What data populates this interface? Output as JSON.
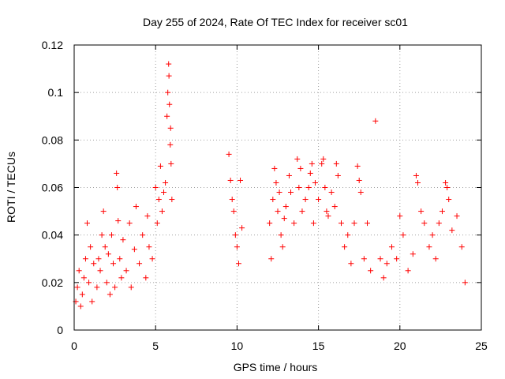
{
  "chart_data": {
    "type": "scatter",
    "title": "Day 255 of 2024, Rate Of TEC Index for receiver sc01",
    "xlabel": "GPS time / hours",
    "ylabel": "ROTI / TECUs",
    "xlim": [
      0,
      25
    ],
    "ylim": [
      0,
      0.12
    ],
    "xticks": [
      0,
      5,
      10,
      15,
      20,
      25
    ],
    "xtick_labels": [
      "0",
      "5",
      "10",
      "15",
      "20",
      "25"
    ],
    "yticks": [
      0,
      0.02,
      0.04,
      0.06,
      0.08,
      0.1,
      0.12
    ],
    "ytick_labels": [
      "0",
      "0.02",
      "0.04",
      "0.06",
      "0.08",
      "0.1",
      "0.12"
    ],
    "grid": true,
    "marker": "+",
    "color": "#ff0000",
    "series": [
      {
        "points": [
          [
            0.1,
            0.012
          ],
          [
            0.2,
            0.018
          ],
          [
            0.3,
            0.025
          ],
          [
            0.4,
            0.01
          ],
          [
            0.5,
            0.015
          ],
          [
            0.6,
            0.022
          ],
          [
            0.7,
            0.03
          ],
          [
            0.8,
            0.045
          ],
          [
            0.9,
            0.02
          ],
          [
            1.0,
            0.035
          ],
          [
            1.1,
            0.012
          ],
          [
            1.2,
            0.028
          ],
          [
            1.4,
            0.018
          ],
          [
            1.5,
            0.03
          ],
          [
            1.6,
            0.025
          ],
          [
            1.7,
            0.04
          ],
          [
            1.8,
            0.05
          ],
          [
            1.9,
            0.035
          ],
          [
            2.0,
            0.02
          ],
          [
            2.1,
            0.032
          ],
          [
            2.2,
            0.015
          ],
          [
            2.3,
            0.04
          ],
          [
            2.4,
            0.028
          ],
          [
            2.5,
            0.018
          ],
          [
            2.6,
            0.066
          ],
          [
            2.65,
            0.06
          ],
          [
            2.7,
            0.046
          ],
          [
            2.8,
            0.03
          ],
          [
            2.9,
            0.022
          ],
          [
            3.0,
            0.038
          ],
          [
            3.2,
            0.025
          ],
          [
            3.4,
            0.045
          ],
          [
            3.5,
            0.018
          ],
          [
            3.7,
            0.034
          ],
          [
            3.8,
            0.052
          ],
          [
            4.0,
            0.028
          ],
          [
            4.2,
            0.04
          ],
          [
            4.4,
            0.022
          ],
          [
            4.5,
            0.048
          ],
          [
            4.6,
            0.035
          ],
          [
            4.8,
            0.03
          ],
          [
            5.0,
            0.06
          ],
          [
            5.1,
            0.045
          ],
          [
            5.2,
            0.055
          ],
          [
            5.3,
            0.069
          ],
          [
            5.4,
            0.05
          ],
          [
            5.5,
            0.058
          ],
          [
            5.6,
            0.062
          ],
          [
            5.7,
            0.09
          ],
          [
            5.75,
            0.1
          ],
          [
            5.8,
            0.112
          ],
          [
            5.82,
            0.107
          ],
          [
            5.85,
            0.095
          ],
          [
            5.9,
            0.078
          ],
          [
            5.92,
            0.085
          ],
          [
            5.95,
            0.07
          ],
          [
            6.0,
            0.055
          ],
          [
            9.5,
            0.074
          ],
          [
            9.6,
            0.063
          ],
          [
            9.7,
            0.055
          ],
          [
            9.8,
            0.05
          ],
          [
            9.9,
            0.04
          ],
          [
            10.0,
            0.035
          ],
          [
            10.1,
            0.028
          ],
          [
            10.2,
            0.063
          ],
          [
            10.3,
            0.043
          ],
          [
            12.0,
            0.045
          ],
          [
            12.1,
            0.03
          ],
          [
            12.2,
            0.055
          ],
          [
            12.3,
            0.068
          ],
          [
            12.4,
            0.062
          ],
          [
            12.5,
            0.05
          ],
          [
            12.6,
            0.058
          ],
          [
            12.7,
            0.04
          ],
          [
            12.8,
            0.035
          ],
          [
            12.9,
            0.047
          ],
          [
            13.0,
            0.052
          ],
          [
            13.2,
            0.065
          ],
          [
            13.3,
            0.058
          ],
          [
            13.5,
            0.045
          ],
          [
            13.7,
            0.072
          ],
          [
            13.8,
            0.06
          ],
          [
            13.9,
            0.068
          ],
          [
            14.0,
            0.05
          ],
          [
            14.2,
            0.055
          ],
          [
            14.4,
            0.06
          ],
          [
            14.5,
            0.066
          ],
          [
            14.6,
            0.07
          ],
          [
            14.7,
            0.045
          ],
          [
            14.8,
            0.062
          ],
          [
            15.0,
            0.055
          ],
          [
            15.2,
            0.07
          ],
          [
            15.3,
            0.072
          ],
          [
            15.4,
            0.06
          ],
          [
            15.5,
            0.05
          ],
          [
            15.6,
            0.048
          ],
          [
            15.8,
            0.058
          ],
          [
            16.0,
            0.052
          ],
          [
            16.1,
            0.07
          ],
          [
            16.2,
            0.065
          ],
          [
            16.4,
            0.045
          ],
          [
            16.6,
            0.035
          ],
          [
            16.8,
            0.04
          ],
          [
            17.0,
            0.028
          ],
          [
            17.2,
            0.045
          ],
          [
            17.4,
            0.069
          ],
          [
            17.5,
            0.063
          ],
          [
            17.6,
            0.058
          ],
          [
            17.8,
            0.03
          ],
          [
            18.0,
            0.045
          ],
          [
            18.2,
            0.025
          ],
          [
            18.5,
            0.088
          ],
          [
            18.8,
            0.03
          ],
          [
            19.0,
            0.022
          ],
          [
            19.2,
            0.028
          ],
          [
            19.5,
            0.035
          ],
          [
            19.8,
            0.03
          ],
          [
            20.0,
            0.048
          ],
          [
            20.2,
            0.04
          ],
          [
            20.5,
            0.025
          ],
          [
            20.8,
            0.032
          ],
          [
            21.0,
            0.065
          ],
          [
            21.1,
            0.062
          ],
          [
            21.3,
            0.05
          ],
          [
            21.5,
            0.045
          ],
          [
            21.8,
            0.035
          ],
          [
            22.0,
            0.04
          ],
          [
            22.2,
            0.03
          ],
          [
            22.4,
            0.045
          ],
          [
            22.6,
            0.05
          ],
          [
            22.8,
            0.062
          ],
          [
            22.9,
            0.06
          ],
          [
            23.0,
            0.055
          ],
          [
            23.2,
            0.042
          ],
          [
            23.5,
            0.048
          ],
          [
            23.8,
            0.035
          ],
          [
            24.0,
            0.02
          ]
        ]
      }
    ]
  }
}
